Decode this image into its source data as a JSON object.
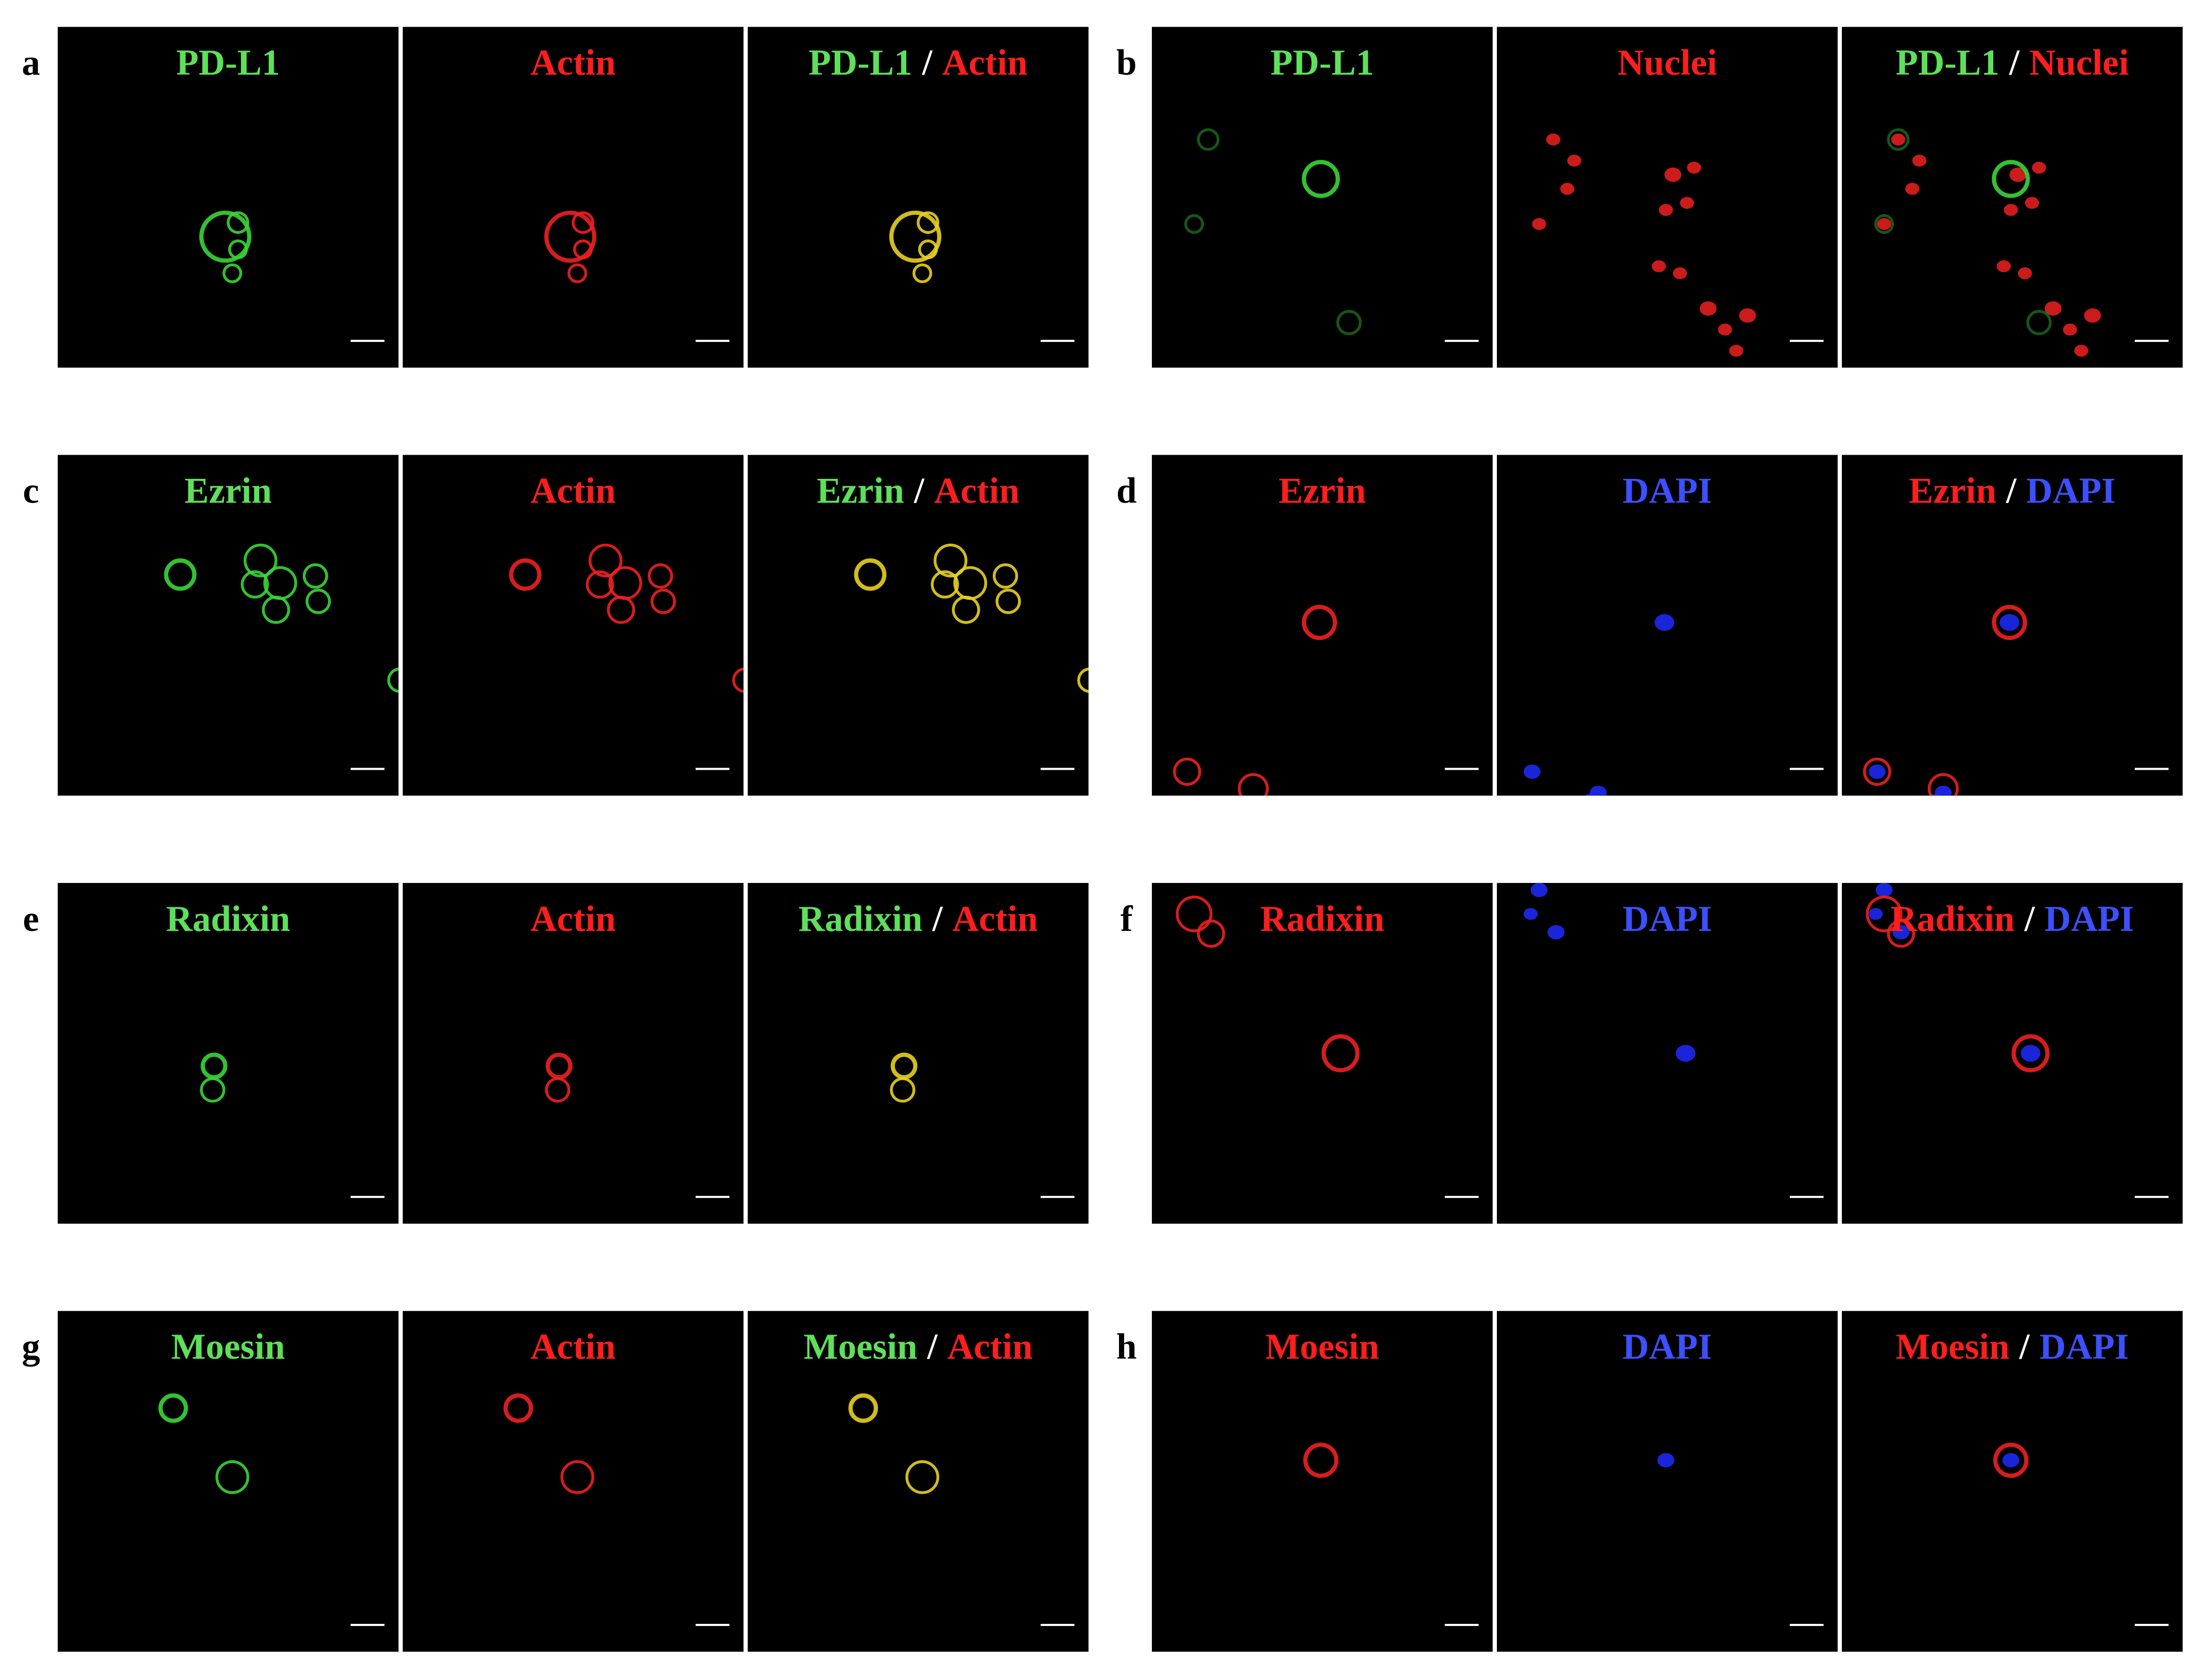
{
  "panels": [
    {
      "letter": "a",
      "images": [
        {
          "title": [
            {
              "text": "PD-L1",
              "color": "green"
            }
          ]
        },
        {
          "title": [
            {
              "text": "Actin",
              "color": "red"
            }
          ]
        },
        {
          "title": [
            {
              "text": "PD-L1",
              "color": "green"
            },
            {
              "text": "/",
              "color": "white"
            },
            {
              "text": "Actin",
              "color": "red"
            }
          ]
        }
      ]
    },
    {
      "letter": "b",
      "images": [
        {
          "title": [
            {
              "text": "PD-L1",
              "color": "green"
            }
          ]
        },
        {
          "title": [
            {
              "text": "Nuclei",
              "color": "red"
            }
          ]
        },
        {
          "title": [
            {
              "text": "PD-L1",
              "color": "green"
            },
            {
              "text": "/",
              "color": "white"
            },
            {
              "text": "Nuclei",
              "color": "red"
            }
          ]
        }
      ]
    },
    {
      "letter": "c",
      "images": [
        {
          "title": [
            {
              "text": "Ezrin",
              "color": "green"
            }
          ]
        },
        {
          "title": [
            {
              "text": "Actin",
              "color": "red"
            }
          ]
        },
        {
          "title": [
            {
              "text": "Ezrin",
              "color": "green"
            },
            {
              "text": "/",
              "color": "white"
            },
            {
              "text": "Actin",
              "color": "red"
            }
          ]
        }
      ]
    },
    {
      "letter": "d",
      "images": [
        {
          "title": [
            {
              "text": "Ezrin",
              "color": "red"
            }
          ]
        },
        {
          "title": [
            {
              "text": "DAPI",
              "color": "blue"
            }
          ]
        },
        {
          "title": [
            {
              "text": "Ezrin",
              "color": "red"
            },
            {
              "text": "/",
              "color": "white"
            },
            {
              "text": "DAPI",
              "color": "blue"
            }
          ]
        }
      ]
    },
    {
      "letter": "e",
      "images": [
        {
          "title": [
            {
              "text": "Radixin",
              "color": "green"
            }
          ]
        },
        {
          "title": [
            {
              "text": "Actin",
              "color": "red"
            }
          ]
        },
        {
          "title": [
            {
              "text": "Radixin",
              "color": "green"
            },
            {
              "text": "/",
              "color": "white"
            },
            {
              "text": "Actin",
              "color": "red"
            }
          ]
        }
      ]
    },
    {
      "letter": "f",
      "images": [
        {
          "title": [
            {
              "text": "Radixin",
              "color": "red"
            }
          ]
        },
        {
          "title": [
            {
              "text": "DAPI",
              "color": "blue"
            }
          ]
        },
        {
          "title": [
            {
              "text": "Radixin",
              "color": "red"
            },
            {
              "text": "/",
              "color": "white"
            },
            {
              "text": "DAPI",
              "color": "blue"
            }
          ]
        }
      ]
    },
    {
      "letter": "g",
      "images": [
        {
          "title": [
            {
              "text": "Moesin",
              "color": "green"
            }
          ]
        },
        {
          "title": [
            {
              "text": "Actin",
              "color": "red"
            }
          ]
        },
        {
          "title": [
            {
              "text": "Moesin",
              "color": "green"
            },
            {
              "text": "/",
              "color": "white"
            },
            {
              "text": "Actin",
              "color": "red"
            }
          ]
        }
      ]
    },
    {
      "letter": "h",
      "images": [
        {
          "title": [
            {
              "text": "Moesin",
              "color": "red"
            }
          ]
        },
        {
          "title": [
            {
              "text": "DAPI",
              "color": "blue"
            }
          ]
        },
        {
          "title": [
            {
              "text": "Moesin",
              "color": "red"
            },
            {
              "text": "/",
              "color": "white"
            },
            {
              "text": "DAPI",
              "color": "blue"
            }
          ]
        }
      ]
    }
  ]
}
